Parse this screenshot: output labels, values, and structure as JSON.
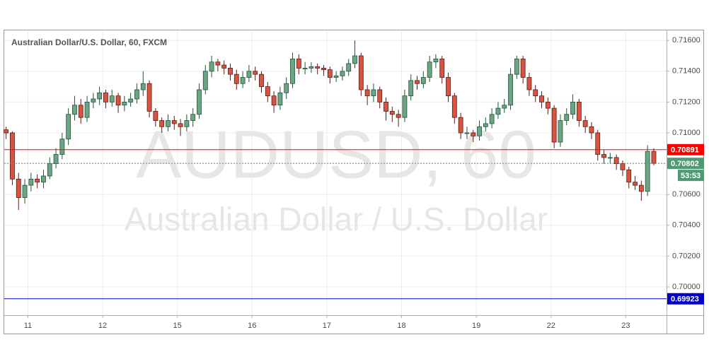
{
  "chart_data": {
    "type": "candlestick",
    "title": "Australian Dollar/U.S. Dollar, 60, FXCM",
    "watermark": [
      "AUDUSD, 60",
      "Australian Dollar / U.S. Dollar"
    ],
    "up_color": "#6ba583",
    "down_color": "#d75442",
    "grid": true,
    "xlim": [
      -0.6,
      212.1
    ],
    "xticks": [
      {
        "value": 7,
        "label": "11"
      },
      {
        "value": 31,
        "label": "12"
      },
      {
        "value": 55,
        "label": "15"
      },
      {
        "value": 79,
        "label": "16"
      },
      {
        "value": 103,
        "label": "17"
      },
      {
        "value": 127,
        "label": "18"
      },
      {
        "value": 151,
        "label": "19"
      },
      {
        "value": 175,
        "label": "22"
      },
      {
        "value": 199,
        "label": "23"
      }
    ],
    "ylim": [
      0.69821,
      0.71656
    ],
    "yticks": [
      {
        "value": 0.7,
        "label": "0.70000"
      },
      {
        "value": 0.702,
        "label": "0.70200"
      },
      {
        "value": 0.704,
        "label": "0.70400"
      },
      {
        "value": 0.706,
        "label": "0.70600"
      },
      {
        "value": 0.708,
        "label": "0.70800"
      },
      {
        "value": 0.71,
        "label": "0.71000"
      },
      {
        "value": 0.712,
        "label": "0.71200"
      },
      {
        "value": 0.714,
        "label": "0.71400"
      },
      {
        "value": 0.716,
        "label": "0.71600"
      }
    ],
    "price_lines": [
      {
        "value": 0.70891,
        "color": "#ff0000",
        "style": "solid"
      },
      {
        "value": 0.70802,
        "color": "#4f9a74",
        "style": "dotted"
      },
      {
        "value": 0.69923,
        "color": "#0000c8",
        "style": "solid"
      }
    ],
    "countdown": "53:53",
    "x": [
      0,
      2,
      4,
      6,
      8,
      10,
      12,
      14,
      16,
      18,
      20,
      22,
      24,
      26,
      28,
      30,
      32,
      34,
      36,
      38,
      40,
      42,
      44,
      46,
      48,
      50,
      52,
      54,
      56,
      58,
      60,
      62,
      64,
      66,
      68,
      70,
      72,
      74,
      76,
      78,
      80,
      82,
      84,
      86,
      88,
      90,
      92,
      94,
      96,
      98,
      100,
      102,
      104,
      106,
      108,
      110,
      112,
      114,
      116,
      118,
      120,
      122,
      124,
      126,
      128,
      130,
      132,
      134,
      136,
      138,
      140,
      142,
      144,
      146,
      148,
      150,
      152,
      154,
      156,
      158,
      160,
      162,
      164,
      166,
      168,
      170,
      172,
      174,
      176,
      178,
      180,
      182,
      184,
      186,
      188,
      190,
      192,
      194,
      196,
      198,
      200,
      202,
      204,
      206,
      208
    ],
    "candles": [
      [
        0.7102,
        0.7104,
        0.7096,
        0.71
      ],
      [
        0.71,
        0.7101,
        0.7066,
        0.707
      ],
      [
        0.707,
        0.7074,
        0.705,
        0.7058
      ],
      [
        0.7058,
        0.707,
        0.7054,
        0.7066
      ],
      [
        0.7066,
        0.7074,
        0.7062,
        0.707
      ],
      [
        0.707,
        0.7073,
        0.7064,
        0.7068
      ],
      [
        0.7068,
        0.7076,
        0.7064,
        0.7072
      ],
      [
        0.7072,
        0.7084,
        0.707,
        0.708
      ],
      [
        0.708,
        0.709,
        0.7077,
        0.7086
      ],
      [
        0.7086,
        0.71,
        0.7083,
        0.7096
      ],
      [
        0.7096,
        0.7116,
        0.7092,
        0.7112
      ],
      [
        0.7112,
        0.7124,
        0.7108,
        0.7118
      ],
      [
        0.7118,
        0.7122,
        0.7106,
        0.711
      ],
      [
        0.711,
        0.7124,
        0.7107,
        0.712
      ],
      [
        0.712,
        0.7126,
        0.7116,
        0.7122
      ],
      [
        0.7122,
        0.713,
        0.7118,
        0.7126
      ],
      [
        0.7126,
        0.7128,
        0.7116,
        0.712
      ],
      [
        0.712,
        0.7128,
        0.7117,
        0.7124
      ],
      [
        0.7124,
        0.7126,
        0.7113,
        0.7118
      ],
      [
        0.7118,
        0.7124,
        0.7114,
        0.712
      ],
      [
        0.712,
        0.7126,
        0.7117,
        0.7122
      ],
      [
        0.7122,
        0.7132,
        0.7119,
        0.7128
      ],
      [
        0.7128,
        0.714,
        0.7124,
        0.7132
      ],
      [
        0.7132,
        0.7134,
        0.711,
        0.7114
      ],
      [
        0.7114,
        0.7116,
        0.7104,
        0.7108
      ],
      [
        0.7108,
        0.711,
        0.71,
        0.7104
      ],
      [
        0.7104,
        0.7112,
        0.7101,
        0.7108
      ],
      [
        0.7108,
        0.7111,
        0.7102,
        0.7106
      ],
      [
        0.7106,
        0.7109,
        0.7098,
        0.7104
      ],
      [
        0.7104,
        0.7112,
        0.7101,
        0.7108
      ],
      [
        0.7108,
        0.7116,
        0.7104,
        0.7112
      ],
      [
        0.7112,
        0.7132,
        0.7109,
        0.7128
      ],
      [
        0.7128,
        0.7144,
        0.7125,
        0.714
      ],
      [
        0.714,
        0.715,
        0.7136,
        0.7146
      ],
      [
        0.7146,
        0.7148,
        0.714,
        0.7144
      ],
      [
        0.7144,
        0.7147,
        0.7138,
        0.7142
      ],
      [
        0.7142,
        0.7145,
        0.7134,
        0.7138
      ],
      [
        0.7138,
        0.7141,
        0.7128,
        0.7132
      ],
      [
        0.7132,
        0.714,
        0.7129,
        0.7136
      ],
      [
        0.7136,
        0.7144,
        0.7133,
        0.714
      ],
      [
        0.714,
        0.7143,
        0.7134,
        0.7138
      ],
      [
        0.7138,
        0.714,
        0.7126,
        0.713
      ],
      [
        0.713,
        0.7133,
        0.712,
        0.7124
      ],
      [
        0.7124,
        0.7127,
        0.7113,
        0.7118
      ],
      [
        0.7118,
        0.713,
        0.7115,
        0.7126
      ],
      [
        0.7126,
        0.7136,
        0.7122,
        0.7132
      ],
      [
        0.7132,
        0.7152,
        0.7129,
        0.7148
      ],
      [
        0.7148,
        0.7151,
        0.7138,
        0.7142
      ],
      [
        0.7142,
        0.7146,
        0.7138,
        0.7142
      ],
      [
        0.7142,
        0.7146,
        0.7139,
        0.7143
      ],
      [
        0.7143,
        0.7145,
        0.7138,
        0.7142
      ],
      [
        0.7142,
        0.7144,
        0.7137,
        0.7141
      ],
      [
        0.7141,
        0.7143,
        0.7132,
        0.7136
      ],
      [
        0.7136,
        0.714,
        0.7133,
        0.7137
      ],
      [
        0.7137,
        0.7143,
        0.7134,
        0.714
      ],
      [
        0.714,
        0.7148,
        0.7137,
        0.7145
      ],
      [
        0.7145,
        0.716,
        0.7142,
        0.715
      ],
      [
        0.715,
        0.7152,
        0.7124,
        0.7128
      ],
      [
        0.7128,
        0.7131,
        0.7118,
        0.7124
      ],
      [
        0.7124,
        0.7132,
        0.712,
        0.7128
      ],
      [
        0.7128,
        0.713,
        0.7116,
        0.712
      ],
      [
        0.712,
        0.7123,
        0.7108,
        0.7114
      ],
      [
        0.7114,
        0.7117,
        0.7107,
        0.7112
      ],
      [
        0.7112,
        0.7115,
        0.7104,
        0.711
      ],
      [
        0.711,
        0.7128,
        0.7107,
        0.7124
      ],
      [
        0.7124,
        0.7138,
        0.7121,
        0.7134
      ],
      [
        0.7134,
        0.7137,
        0.7128,
        0.7132
      ],
      [
        0.7132,
        0.714,
        0.7129,
        0.7136
      ],
      [
        0.7136,
        0.715,
        0.7133,
        0.7146
      ],
      [
        0.7146,
        0.7151,
        0.7142,
        0.7148
      ],
      [
        0.7148,
        0.715,
        0.7132,
        0.7136
      ],
      [
        0.7136,
        0.7139,
        0.712,
        0.7124
      ],
      [
        0.7124,
        0.7126,
        0.7106,
        0.711
      ],
      [
        0.711,
        0.7113,
        0.7096,
        0.71
      ],
      [
        0.71,
        0.7104,
        0.7096,
        0.71
      ],
      [
        0.71,
        0.7102,
        0.7094,
        0.7098
      ],
      [
        0.7098,
        0.7108,
        0.7095,
        0.7104
      ],
      [
        0.7104,
        0.711,
        0.7101,
        0.7106
      ],
      [
        0.7106,
        0.7116,
        0.7103,
        0.7112
      ],
      [
        0.7112,
        0.712,
        0.7109,
        0.7116
      ],
      [
        0.7116,
        0.7122,
        0.7113,
        0.7118
      ],
      [
        0.7118,
        0.7142,
        0.7115,
        0.7138
      ],
      [
        0.7138,
        0.715,
        0.7135,
        0.7148
      ],
      [
        0.7148,
        0.715,
        0.7132,
        0.7136
      ],
      [
        0.7136,
        0.7139,
        0.7124,
        0.7128
      ],
      [
        0.7128,
        0.7131,
        0.712,
        0.7124
      ],
      [
        0.7124,
        0.7127,
        0.7116,
        0.712
      ],
      [
        0.712,
        0.7123,
        0.7112,
        0.7116
      ],
      [
        0.7116,
        0.7118,
        0.709,
        0.7094
      ],
      [
        0.7094,
        0.7112,
        0.7091,
        0.7108
      ],
      [
        0.7108,
        0.7116,
        0.7105,
        0.7112
      ],
      [
        0.7112,
        0.7125,
        0.7109,
        0.712
      ],
      [
        0.712,
        0.7122,
        0.7104,
        0.7108
      ],
      [
        0.7108,
        0.7111,
        0.71,
        0.7104
      ],
      [
        0.7104,
        0.7107,
        0.7096,
        0.71
      ],
      [
        0.71,
        0.7102,
        0.7082,
        0.7086
      ],
      [
        0.7086,
        0.7089,
        0.708,
        0.7084
      ],
      [
        0.7084,
        0.7087,
        0.708,
        0.7084
      ],
      [
        0.7084,
        0.7086,
        0.7076,
        0.708
      ],
      [
        0.708,
        0.7082,
        0.7072,
        0.7076
      ],
      [
        0.7076,
        0.7078,
        0.7064,
        0.7068
      ],
      [
        0.7068,
        0.7072,
        0.7063,
        0.7066
      ],
      [
        0.7066,
        0.7069,
        0.7056,
        0.7062
      ],
      [
        0.7062,
        0.7092,
        0.7059,
        0.7088
      ],
      [
        0.7088,
        0.709,
        0.7079,
        0.70802
      ]
    ]
  }
}
